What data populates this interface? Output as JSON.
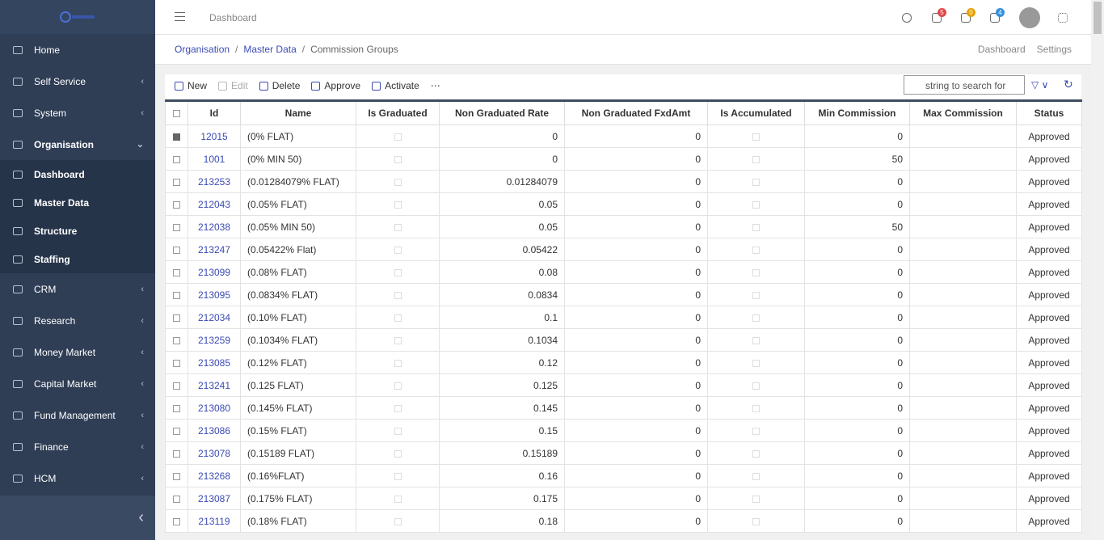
{
  "header": {
    "page": "Dashboard",
    "badges": {
      "notifications": 5,
      "tasks": 0,
      "messages": 4
    }
  },
  "sidebar": {
    "items": [
      {
        "label": "Home",
        "has_children": false
      },
      {
        "label": "Self Service",
        "has_children": true
      },
      {
        "label": "System",
        "has_children": true
      },
      {
        "label": "Organisation",
        "has_children": true,
        "expanded": true,
        "children": [
          "Dashboard",
          "Master Data",
          "Structure",
          "Staffing"
        ]
      },
      {
        "label": "CRM",
        "has_children": true
      },
      {
        "label": "Research",
        "has_children": true
      },
      {
        "label": "Money Market",
        "has_children": true
      },
      {
        "label": "Capital Market",
        "has_children": true
      },
      {
        "label": "Fund Management",
        "has_children": true
      },
      {
        "label": "Finance",
        "has_children": true
      },
      {
        "label": "HCM",
        "has_children": true
      }
    ]
  },
  "breadcrumb": [
    "Organisation",
    "Master Data",
    "Commission Groups"
  ],
  "page_links": [
    "Dashboard",
    "Settings"
  ],
  "toolbar": {
    "actions": [
      {
        "label": "New",
        "enabled": true
      },
      {
        "label": "Edit",
        "enabled": false
      },
      {
        "label": "Delete",
        "enabled": true
      },
      {
        "label": "Approve",
        "enabled": true
      },
      {
        "label": "Activate",
        "enabled": true
      }
    ],
    "search_placeholder": "string to search for"
  },
  "table": {
    "columns": [
      "Id",
      "Name",
      "Is Graduated",
      "Non Graduated Rate",
      "Non Graduated FxdAmt",
      "Is Accumulated",
      "Min Commission",
      "Max Commission",
      "Status"
    ],
    "rows": [
      {
        "id": 12015,
        "name": "(0% FLAT)",
        "rate": 0,
        "fxd": 0,
        "min": 0,
        "status": "Approved",
        "checked": true
      },
      {
        "id": 1001,
        "name": "(0% MIN 50)",
        "rate": 0,
        "fxd": 0,
        "min": 50,
        "status": "Approved"
      },
      {
        "id": 213253,
        "name": "(0.01284079% FLAT)",
        "rate": 0.01284079,
        "fxd": 0,
        "min": 0,
        "status": "Approved"
      },
      {
        "id": 212043,
        "name": "(0.05% FLAT)",
        "rate": 0.05,
        "fxd": 0,
        "min": 0,
        "status": "Approved"
      },
      {
        "id": 212038,
        "name": "(0.05% MIN 50)",
        "rate": 0.05,
        "fxd": 0,
        "min": 50,
        "status": "Approved"
      },
      {
        "id": 213247,
        "name": "(0.05422% Flat)",
        "rate": 0.05422,
        "fxd": 0,
        "min": 0,
        "status": "Approved"
      },
      {
        "id": 213099,
        "name": "(0.08% FLAT)",
        "rate": 0.08,
        "fxd": 0,
        "min": 0,
        "status": "Approved"
      },
      {
        "id": 213095,
        "name": "(0.0834% FLAT)",
        "rate": 0.0834,
        "fxd": 0,
        "min": 0,
        "status": "Approved"
      },
      {
        "id": 212034,
        "name": "(0.10% FLAT)",
        "rate": 0.1,
        "fxd": 0,
        "min": 0,
        "status": "Approved"
      },
      {
        "id": 213259,
        "name": "(0.1034% FLAT)",
        "rate": 0.1034,
        "fxd": 0,
        "min": 0,
        "status": "Approved"
      },
      {
        "id": 213085,
        "name": "(0.12% FLAT)",
        "rate": 0.12,
        "fxd": 0,
        "min": 0,
        "status": "Approved"
      },
      {
        "id": 213241,
        "name": "(0.125 FLAT)",
        "rate": 0.125,
        "fxd": 0,
        "min": 0,
        "status": "Approved"
      },
      {
        "id": 213080,
        "name": "(0.145% FLAT)",
        "rate": 0.145,
        "fxd": 0,
        "min": 0,
        "status": "Approved"
      },
      {
        "id": 213086,
        "name": "(0.15% FLAT)",
        "rate": 0.15,
        "fxd": 0,
        "min": 0,
        "status": "Approved"
      },
      {
        "id": 213078,
        "name": "(0.15189 FLAT)",
        "rate": 0.15189,
        "fxd": 0,
        "min": 0,
        "status": "Approved"
      },
      {
        "id": 213268,
        "name": "(0.16%FLAT)",
        "rate": 0.16,
        "fxd": 0,
        "min": 0,
        "status": "Approved"
      },
      {
        "id": 213087,
        "name": "(0.175% FLAT)",
        "rate": 0.175,
        "fxd": 0,
        "min": 0,
        "status": "Approved"
      },
      {
        "id": 213119,
        "name": "(0.18% FLAT)",
        "rate": 0.18,
        "fxd": 0,
        "min": 0,
        "status": "Approved"
      }
    ]
  }
}
